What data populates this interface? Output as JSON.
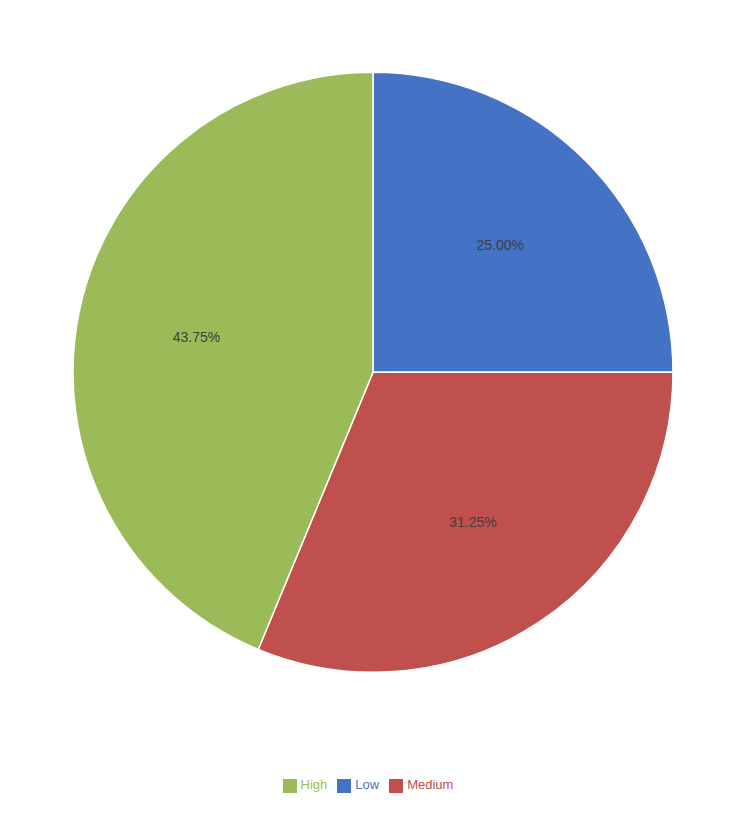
{
  "chart_data": {
    "type": "pie",
    "categories": [
      "Low",
      "Medium",
      "High"
    ],
    "values": [
      25.0,
      31.25,
      43.75
    ],
    "value_labels": [
      "25.00%",
      "31.25%",
      "43.75%"
    ],
    "colors": [
      "#4472C4",
      "#C0504D",
      "#9BBB59"
    ],
    "data_labels": true,
    "legend": "bottom"
  }
}
